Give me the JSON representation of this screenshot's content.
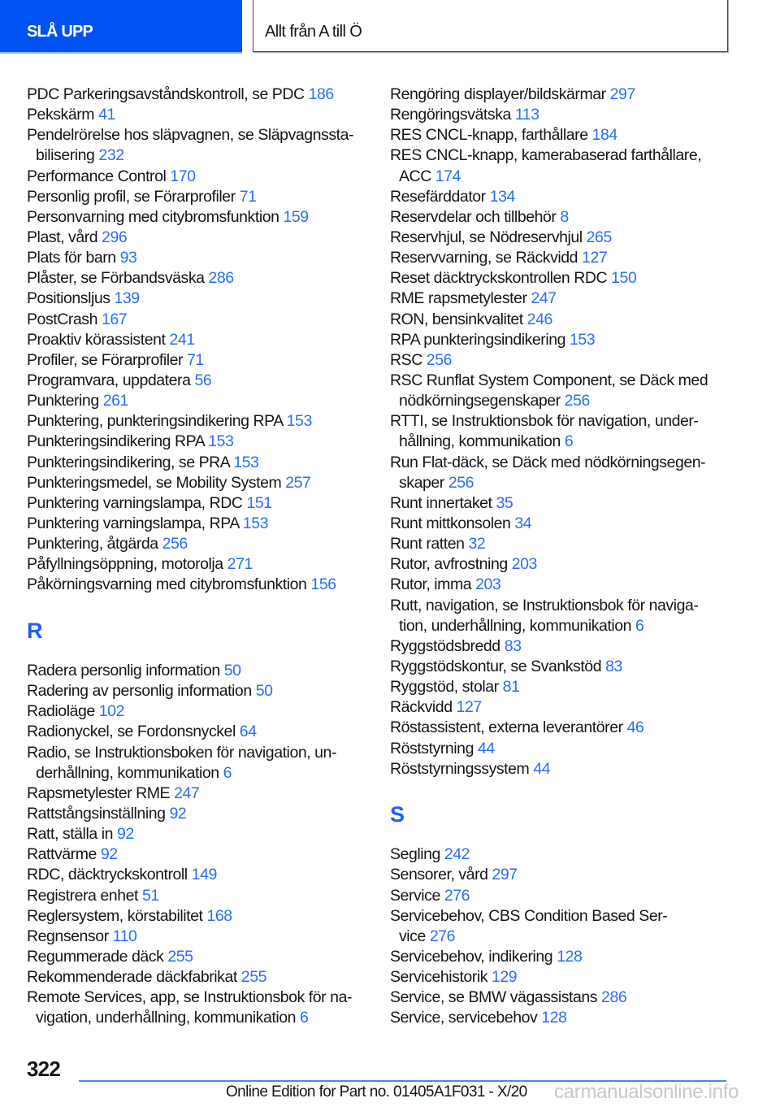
{
  "header": {
    "tab_label": "SLÅ UPP",
    "section_title": "Allt från A till Ö"
  },
  "columns": [
    [
      {
        "lines": [
          "PDC Parkeringsavståndskontroll, se PDC"
        ],
        "page": "186"
      },
      {
        "lines": [
          "Pekskärm"
        ],
        "page": "41"
      },
      {
        "lines": [
          "Pendelrörelse hos släpvagnen, se Släpvagnssta-",
          "bilisering"
        ],
        "page": "232"
      },
      {
        "lines": [
          "Performance Control"
        ],
        "page": "170"
      },
      {
        "lines": [
          "Personlig profil, se Förarprofiler"
        ],
        "page": "71"
      },
      {
        "lines": [
          "Personvarning med citybromsfunktion"
        ],
        "page": "159"
      },
      {
        "lines": [
          "Plast, vård"
        ],
        "page": "296"
      },
      {
        "lines": [
          "Plats för barn"
        ],
        "page": "93"
      },
      {
        "lines": [
          "Plåster, se Förbandsväska"
        ],
        "page": "286"
      },
      {
        "lines": [
          "Positionsljus"
        ],
        "page": "139"
      },
      {
        "lines": [
          "PostCrash"
        ],
        "page": "167"
      },
      {
        "lines": [
          "Proaktiv körassistent"
        ],
        "page": "241"
      },
      {
        "lines": [
          "Profiler, se Förarprofiler"
        ],
        "page": "71"
      },
      {
        "lines": [
          "Programvara, uppdatera"
        ],
        "page": "56"
      },
      {
        "lines": [
          "Punktering"
        ],
        "page": "261"
      },
      {
        "lines": [
          "Punktering, punkteringsindikering RPA"
        ],
        "page": "153"
      },
      {
        "lines": [
          "Punkteringsindikering RPA"
        ],
        "page": "153"
      },
      {
        "lines": [
          "Punkteringsindikering, se PRA"
        ],
        "page": "153"
      },
      {
        "lines": [
          "Punkteringsmedel, se Mobility System"
        ],
        "page": "257"
      },
      {
        "lines": [
          "Punktering varningslampa, RDC"
        ],
        "page": "151"
      },
      {
        "lines": [
          "Punktering varningslampa, RPA"
        ],
        "page": "153"
      },
      {
        "lines": [
          "Punktering, åtgärda"
        ],
        "page": "256"
      },
      {
        "lines": [
          "Påfyllningsöppning, motorolja"
        ],
        "page": "271"
      },
      {
        "lines": [
          "Påkörningsvarning med citybromsfunktion"
        ],
        "page": "156"
      },
      {
        "section": "R"
      },
      {
        "lines": [
          "Radera personlig information"
        ],
        "page": "50"
      },
      {
        "lines": [
          "Radering av personlig information"
        ],
        "page": "50"
      },
      {
        "lines": [
          "Radioläge"
        ],
        "page": "102"
      },
      {
        "lines": [
          "Radionyckel, se Fordonsnyckel"
        ],
        "page": "64"
      },
      {
        "lines": [
          "Radio, se Instruktionsboken för navigation, un-",
          "derhållning, kommunikation"
        ],
        "page": "6"
      },
      {
        "lines": [
          "Rapsmetylester RME"
        ],
        "page": "247"
      },
      {
        "lines": [
          "Rattstångsinställning"
        ],
        "page": "92"
      },
      {
        "lines": [
          "Ratt, ställa in"
        ],
        "page": "92"
      },
      {
        "lines": [
          "Rattvärme"
        ],
        "page": "92"
      },
      {
        "lines": [
          "RDC, däcktryckskontroll"
        ],
        "page": "149"
      },
      {
        "lines": [
          "Registrera enhet"
        ],
        "page": "51"
      },
      {
        "lines": [
          "Reglersystem, körstabilitet"
        ],
        "page": "168"
      },
      {
        "lines": [
          "Regnsensor"
        ],
        "page": "110"
      },
      {
        "lines": [
          "Regummerade däck"
        ],
        "page": "255"
      },
      {
        "lines": [
          "Rekommenderade däckfabrikat"
        ],
        "page": "255"
      },
      {
        "lines": [
          "Remote Services, app, se Instruktionsbok för na-",
          "vigation, underhållning, kommunikation"
        ],
        "page": "6"
      }
    ],
    [
      {
        "lines": [
          "Rengöring displayer/bildskärmar"
        ],
        "page": "297"
      },
      {
        "lines": [
          "Rengöringsvätska"
        ],
        "page": "113"
      },
      {
        "lines": [
          "RES CNCL-knapp, farthållare"
        ],
        "page": "184"
      },
      {
        "lines": [
          "RES CNCL-knapp, kamerabaserad farthållare,",
          "ACC"
        ],
        "page": "174"
      },
      {
        "lines": [
          "Resefärddator"
        ],
        "page": "134"
      },
      {
        "lines": [
          "Reservdelar och tillbehör"
        ],
        "page": "8"
      },
      {
        "lines": [
          "Reservhjul, se Nödreservhjul"
        ],
        "page": "265"
      },
      {
        "lines": [
          "Reservvarning, se Räckvidd"
        ],
        "page": "127"
      },
      {
        "lines": [
          "Reset däcktryckskontrollen RDC"
        ],
        "page": "150"
      },
      {
        "lines": [
          "RME rapsmetylester"
        ],
        "page": "247"
      },
      {
        "lines": [
          "RON, bensinkvalitet"
        ],
        "page": "246"
      },
      {
        "lines": [
          "RPA punkteringsindikering"
        ],
        "page": "153"
      },
      {
        "lines": [
          "RSC"
        ],
        "page": "256"
      },
      {
        "lines": [
          "RSC Runflat System Component, se Däck med",
          "nödkörningsegenskaper"
        ],
        "page": "256"
      },
      {
        "lines": [
          "RTTI, se Instruktionsbok för navigation, under-",
          "hållning, kommunikation"
        ],
        "page": "6"
      },
      {
        "lines": [
          "Run Flat-däck, se Däck med nödkörningsegen-",
          "skaper"
        ],
        "page": "256"
      },
      {
        "lines": [
          "Runt innertaket"
        ],
        "page": "35"
      },
      {
        "lines": [
          "Runt mittkonsolen"
        ],
        "page": "34"
      },
      {
        "lines": [
          "Runt ratten"
        ],
        "page": "32"
      },
      {
        "lines": [
          "Rutor, avfrostning"
        ],
        "page": "203"
      },
      {
        "lines": [
          "Rutor, imma"
        ],
        "page": "203"
      },
      {
        "lines": [
          "Rutt, navigation, se Instruktionsbok för naviga-",
          "tion, underhållning, kommunikation"
        ],
        "page": "6"
      },
      {
        "lines": [
          "Ryggstödsbredd"
        ],
        "page": "83"
      },
      {
        "lines": [
          "Ryggstödskontur, se Svankstöd"
        ],
        "page": "83"
      },
      {
        "lines": [
          "Ryggstöd, stolar"
        ],
        "page": "81"
      },
      {
        "lines": [
          "Räckvidd"
        ],
        "page": "127"
      },
      {
        "lines": [
          "Röstassistent, externa leverantörer"
        ],
        "page": "46"
      },
      {
        "lines": [
          "Röststyrning"
        ],
        "page": "44"
      },
      {
        "lines": [
          "Röststyrningssystem"
        ],
        "page": "44"
      },
      {
        "section": "S"
      },
      {
        "lines": [
          "Segling"
        ],
        "page": "242"
      },
      {
        "lines": [
          "Sensorer, vård"
        ],
        "page": "297"
      },
      {
        "lines": [
          "Service"
        ],
        "page": "276"
      },
      {
        "lines": [
          "Servicebehov, CBS Condition Based Ser-",
          "vice"
        ],
        "page": "276"
      },
      {
        "lines": [
          "Servicebehov, indikering"
        ],
        "page": "128"
      },
      {
        "lines": [
          "Servicehistorik"
        ],
        "page": "129"
      },
      {
        "lines": [
          "Service, se BMW vägassistans"
        ],
        "page": "286"
      },
      {
        "lines": [
          "Service, servicebehov"
        ],
        "page": "128"
      }
    ]
  ],
  "footer": {
    "page_number": "322",
    "edition": "Online Edition for Part no. 01405A1F031 - X/20",
    "watermark": "carmanualsonline.info"
  },
  "colors": {
    "accent": "#0052f2",
    "link": "#2a6df4"
  }
}
